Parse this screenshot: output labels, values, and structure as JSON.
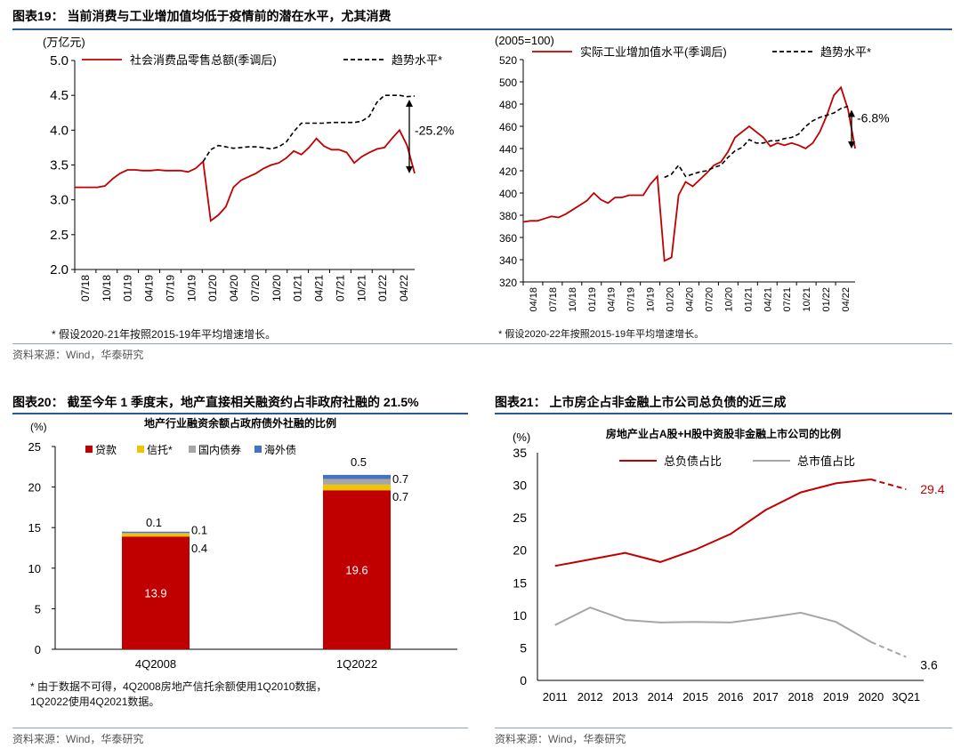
{
  "panel19": {
    "title": "图表19：  当前消费与工业增加值均低于疫情前的潜在水平，尤其消费",
    "footnote_left": "* 假设2020-21年按照2015-19年平均增速增长。",
    "footnote_right": "* 假设2020-22年按照2015-19年平均增速增长。",
    "source": "资料来源：Wind，华泰研究"
  },
  "panel20": {
    "title": "图表20：  截至今年 1 季度末，地产直接相关融资约占非政府社融的 21.5%",
    "footnote": [
      "* 由于数据不可得，4Q2008房地产信托余额使用1Q2010数据，",
      "1Q2022使用4Q2021数据。"
    ],
    "source": "资料来源：Wind，华泰研究"
  },
  "panel21": {
    "title": "图表21：  上市房企占非金融上市公司总负债的近三成",
    "source": "资料来源：Wind，华泰研究"
  },
  "colors": {
    "red": "#c00000",
    "black": "#000000",
    "gray": "#a6a6a6",
    "yellow": "#f2c300",
    "blue": "#4472c4",
    "navy": "#2b5a8c"
  },
  "chart_data": [
    {
      "id": "retail",
      "type": "line",
      "unit_label": "(万亿元)",
      "ylim": [
        2.0,
        5.0
      ],
      "yticks": [
        "5.0",
        "4.5",
        "4.0",
        "3.5",
        "3.0",
        "2.5",
        "2.0"
      ],
      "xticks": [
        "07/18",
        "10/18",
        "01/19",
        "04/19",
        "07/19",
        "10/19",
        "01/20",
        "04/20",
        "07/20",
        "10/20",
        "01/21",
        "04/21",
        "07/21",
        "10/21",
        "01/22",
        "04/22"
      ],
      "series": [
        {
          "name": "社会消费品零售总额(季调后)",
          "color": "#c00000",
          "style": "solid",
          "values": [
            3.18,
            3.18,
            3.18,
            3.18,
            3.2,
            3.3,
            3.38,
            3.43,
            3.43,
            3.42,
            3.42,
            3.43,
            3.42,
            3.42,
            3.42,
            3.4,
            3.45,
            3.55,
            2.7,
            2.78,
            2.9,
            3.18,
            3.28,
            3.33,
            3.38,
            3.45,
            3.5,
            3.53,
            3.6,
            3.7,
            3.65,
            3.75,
            3.88,
            3.77,
            3.72,
            3.72,
            3.68,
            3.53,
            3.62,
            3.68,
            3.73,
            3.75,
            3.88,
            4.0,
            3.78,
            3.38
          ]
        },
        {
          "name": "趋势水平*",
          "color": "#000000",
          "style": "dashed",
          "start_index": 17,
          "values": [
            3.55,
            3.72,
            3.78,
            3.76,
            3.74,
            3.75,
            3.76,
            3.76,
            3.75,
            3.73,
            3.76,
            3.83,
            3.98,
            4.1,
            4.1,
            4.1,
            4.1,
            4.11,
            4.11,
            4.11,
            4.11,
            4.13,
            4.2,
            4.4,
            4.5,
            4.5,
            4.5,
            4.48,
            4.49
          ]
        }
      ],
      "annotation": "-25.2%"
    },
    {
      "id": "industrial",
      "type": "line",
      "unit_label": "(2005=100)",
      "ylim": [
        320,
        520
      ],
      "yticks": [
        "520",
        "500",
        "480",
        "460",
        "440",
        "420",
        "400",
        "380",
        "360",
        "340",
        "320"
      ],
      "xticks": [
        "04/18",
        "07/18",
        "10/18",
        "01/19",
        "04/19",
        "07/19",
        "10/19",
        "01/20",
        "04/20",
        "07/20",
        "10/20",
        "01/21",
        "04/21",
        "07/21",
        "10/21",
        "01/22",
        "04/22"
      ],
      "series": [
        {
          "name": "实际工业增加值水平(季调后)",
          "color": "#c00000",
          "style": "solid",
          "values": [
            374,
            375,
            375,
            377,
            379,
            378,
            381,
            385,
            389,
            393,
            400,
            394,
            391,
            396,
            396,
            398,
            398,
            398,
            408,
            415,
            339,
            342,
            398,
            410,
            406,
            412,
            418,
            425,
            428,
            437,
            450,
            455,
            460,
            455,
            450,
            442,
            445,
            443,
            445,
            443,
            440,
            445,
            455,
            470,
            488,
            495,
            475,
            440
          ]
        },
        {
          "name": "趋势水平*",
          "color": "#000000",
          "style": "dashed",
          "start_index": 20,
          "values": [
            414,
            417,
            425,
            415,
            417,
            419,
            420,
            423,
            425,
            432,
            438,
            441,
            448,
            445,
            445,
            447,
            447,
            449,
            450,
            453,
            460,
            465,
            468,
            470,
            472,
            476,
            478
          ]
        }
      ],
      "annotation": "-6.8%"
    },
    {
      "id": "financing",
      "type": "bar",
      "subtitle": "地产行业融资余额占政府债外社融的比例",
      "unit_label": "(%)",
      "ylim": [
        0,
        25
      ],
      "yticks": [
        "25",
        "20",
        "15",
        "10",
        "5",
        "0"
      ],
      "categories": [
        "4Q2008",
        "1Q2022"
      ],
      "series": [
        {
          "name": "贷款",
          "color": "#c00000",
          "values": [
            13.9,
            19.6
          ]
        },
        {
          "name": "信托*",
          "color": "#f2c300",
          "values": [
            0.4,
            0.7
          ]
        },
        {
          "name": "国内债券",
          "color": "#a6a6a6",
          "values": [
            0.1,
            0.7
          ]
        },
        {
          "name": "海外债",
          "color": "#4472c4",
          "values": [
            0.1,
            0.5
          ]
        }
      ],
      "data_labels": [
        {
          "category": 0,
          "series": 0,
          "text": "13.9"
        },
        {
          "category": 0,
          "series": 1,
          "text": "0.4"
        },
        {
          "category": 0,
          "series": 2,
          "text": "0.1"
        },
        {
          "category": 0,
          "series": 3,
          "text": "0.1"
        },
        {
          "category": 1,
          "series": 0,
          "text": "19.6"
        },
        {
          "category": 1,
          "series": 1,
          "text": "0.7"
        },
        {
          "category": 1,
          "series": 2,
          "text": "0.7"
        },
        {
          "category": 1,
          "series": 3,
          "text": "0.5"
        }
      ]
    },
    {
      "id": "liabilities",
      "type": "line",
      "subtitle": "房地产业占A股+H股中资股非金融上市公司的比例",
      "unit_label": "(%)",
      "ylim": [
        0,
        35
      ],
      "yticks": [
        "35",
        "30",
        "25",
        "20",
        "15",
        "10",
        "5",
        "0"
      ],
      "categories": [
        "2011",
        "2012",
        "2013",
        "2014",
        "2015",
        "2016",
        "2017",
        "2018",
        "2019",
        "2020",
        "3Q21"
      ],
      "series": [
        {
          "name": "总负债占比",
          "color": "#c00000",
          "values": [
            17.6,
            18.6,
            19.6,
            18.2,
            20.1,
            22.5,
            26.2,
            28.9,
            30.3,
            30.9,
            29.4
          ],
          "dashed_from": 9,
          "end_label": "29.4"
        },
        {
          "name": "总市值占比",
          "color": "#a6a6a6",
          "values": [
            8.5,
            11.2,
            9.3,
            8.9,
            9.0,
            8.9,
            9.6,
            10.4,
            9.0,
            5.9,
            3.6
          ],
          "dashed_from": 9,
          "end_label": "3.6"
        }
      ]
    }
  ]
}
